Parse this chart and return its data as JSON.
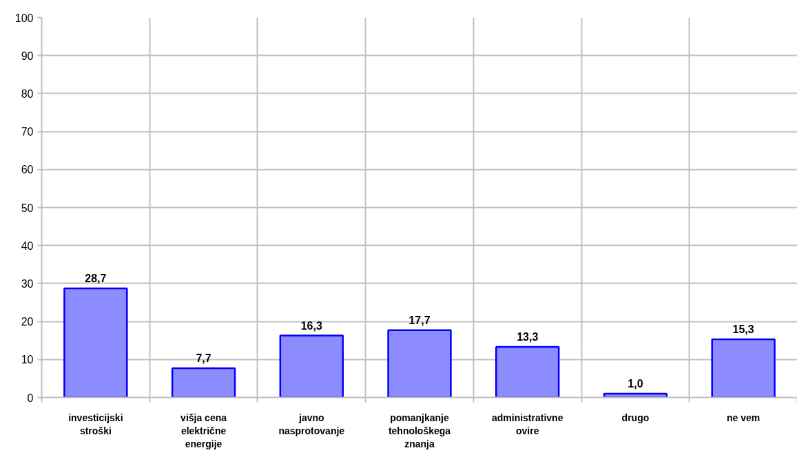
{
  "chart_data": {
    "type": "bar",
    "categories": [
      "investicijski stroški",
      "višja cena električne energije",
      "javno nasprotovanje",
      "pomanjkanje tehnološkega znanja",
      "administrativne ovire",
      "drugo",
      "ne vem"
    ],
    "values": [
      28.7,
      7.7,
      16.3,
      17.7,
      13.3,
      1.0,
      15.3
    ],
    "value_labels": [
      "28,7",
      "7,7",
      "16,3",
      "17,7",
      "13,3",
      "1,0",
      "15,3"
    ],
    "color": "#0000ff",
    "ylim": [
      0,
      100
    ],
    "yticks": [
      0,
      10,
      20,
      30,
      40,
      50,
      60,
      70,
      80,
      90,
      100
    ],
    "grid": true
  }
}
